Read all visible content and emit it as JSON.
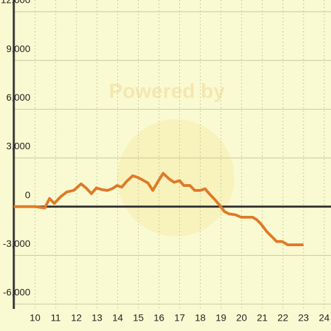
{
  "chart_data": {
    "type": "line",
    "watermark": "Powered by",
    "xlim": [
      8.97,
      24.33
    ],
    "ylim": [
      -6000,
      12000
    ],
    "xticks": [
      10,
      11,
      12,
      13,
      14,
      15,
      16,
      17,
      18,
      19,
      20,
      21,
      22,
      23,
      24
    ],
    "yticks": [
      {
        "value": -6000,
        "label": "-6,000"
      },
      {
        "value": -3000,
        "label": "-3,000"
      },
      0,
      {
        "value": 3000,
        "label": "3,000"
      },
      {
        "value": 6000,
        "label": "6,000"
      },
      {
        "value": 9000,
        "label": "9,000"
      },
      {
        "value": 12000,
        "label": "12,000"
      }
    ],
    "grid": true,
    "series": [
      {
        "color": "#df7a27",
        "x": [
          8.97,
          10.0,
          10.47,
          10.7,
          10.93,
          11.23,
          11.53,
          11.87,
          12.23,
          12.47,
          12.73,
          12.97,
          13.23,
          13.5,
          13.73,
          13.97,
          14.2,
          14.43,
          14.73,
          14.97,
          15.2,
          15.47,
          15.7,
          15.93,
          16.2,
          16.5,
          16.73,
          17.0,
          17.2,
          17.5,
          17.73,
          18.0,
          18.23,
          18.47,
          18.73,
          18.93,
          19.17,
          19.4,
          19.7,
          19.97,
          20.3,
          20.53,
          20.73,
          20.93,
          21.23,
          21.47,
          21.7,
          21.97,
          22.23,
          22.57,
          23.0
        ],
        "values": [
          0,
          0,
          -80,
          500,
          200,
          600,
          900,
          1000,
          1400,
          1150,
          800,
          1150,
          1050,
          1000,
          1100,
          1300,
          1200,
          1550,
          1900,
          1800,
          1650,
          1450,
          1000,
          1500,
          2050,
          1700,
          1500,
          1600,
          1300,
          1300,
          1000,
          1000,
          1100,
          750,
          400,
          100,
          -300,
          -450,
          -500,
          -650,
          -650,
          -650,
          -800,
          -1050,
          -1550,
          -1850,
          -2150,
          -2150,
          -2350,
          -2350,
          -2350
        ]
      }
    ]
  }
}
